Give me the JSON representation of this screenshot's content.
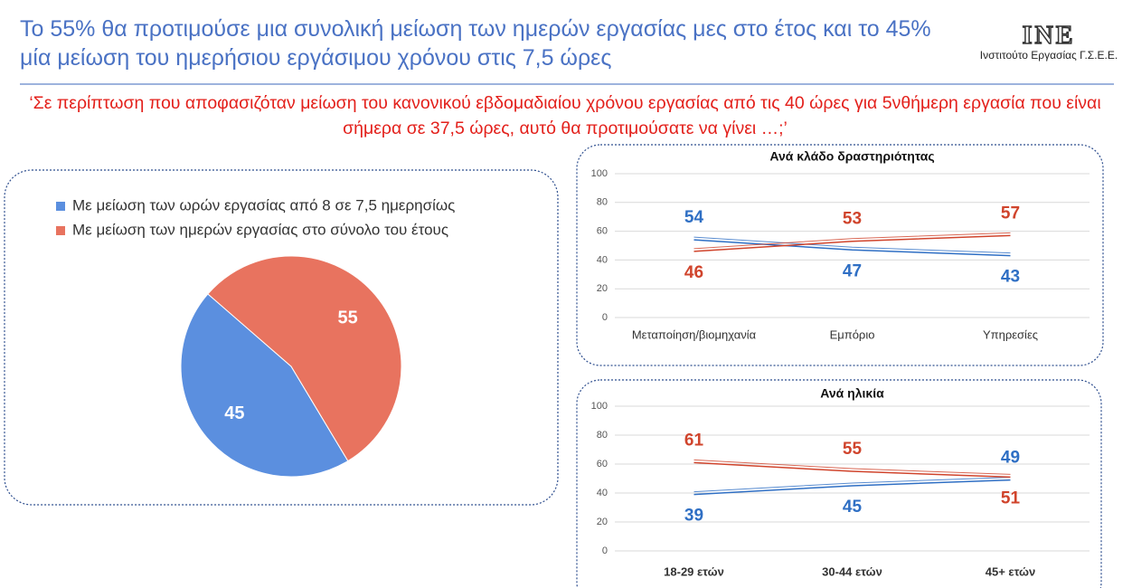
{
  "header": {
    "title": "Το 55% θα προτιμούσε μια συνολική μείωση των ημερών εργασίας μες στο έτος και το 45% μία μείωση του ημερήσιου εργάσιμου χρόνου στις 7,5 ώρες",
    "logo": "INE",
    "organization": "Ινστιτούτο Εργασίας Γ.Σ.Ε.Ε.",
    "question": "‘Σε περίπτωση που αποφασιζόταν μείωση του κανονικού εβδομαδιαίου χρόνου εργασίας από τις 40 ώρες για 5νθήμερη εργασία που είναι σήμερα σε 37,5 ώρες, αυτό θα προτιμούσατε να γίνει …;’"
  },
  "chart_data": [
    {
      "type": "pie",
      "categories": [
        "Με μείωση των ωρών εργασίας από 8 σε 7,5 ημερησίως",
        "Με μείωση των ημερών εργασίας στο σύνολο του έτους"
      ],
      "values": [
        45,
        55
      ],
      "colors": [
        "#5b8fdf",
        "#e8735f"
      ],
      "legend": "top-left"
    },
    {
      "type": "line",
      "title": "Ανά κλάδο δραστηριότητας",
      "categories": [
        "Μεταποίηση/βιομηχανία",
        "Εμπόριο",
        "Υπηρεσίες"
      ],
      "series": [
        {
          "color": "#2f6fc4",
          "values": [
            54,
            47,
            43
          ]
        },
        {
          "color": "#d0442c",
          "values": [
            46,
            53,
            57
          ]
        }
      ],
      "ylim": [
        0,
        100
      ],
      "yticks": [
        0,
        20,
        40,
        60,
        80,
        100
      ],
      "grid": true
    },
    {
      "type": "line",
      "title": "Ανά ηλικία",
      "categories": [
        "18-29 ετών",
        "30-44 ετών",
        "45+ ετών"
      ],
      "series": [
        {
          "color": "#2f6fc4",
          "values": [
            39,
            45,
            49
          ]
        },
        {
          "color": "#d0442c",
          "values": [
            61,
            55,
            51
          ]
        }
      ],
      "ylim": [
        0,
        100
      ],
      "yticks": [
        0,
        20,
        40,
        60,
        80,
        100
      ],
      "grid": true
    }
  ]
}
